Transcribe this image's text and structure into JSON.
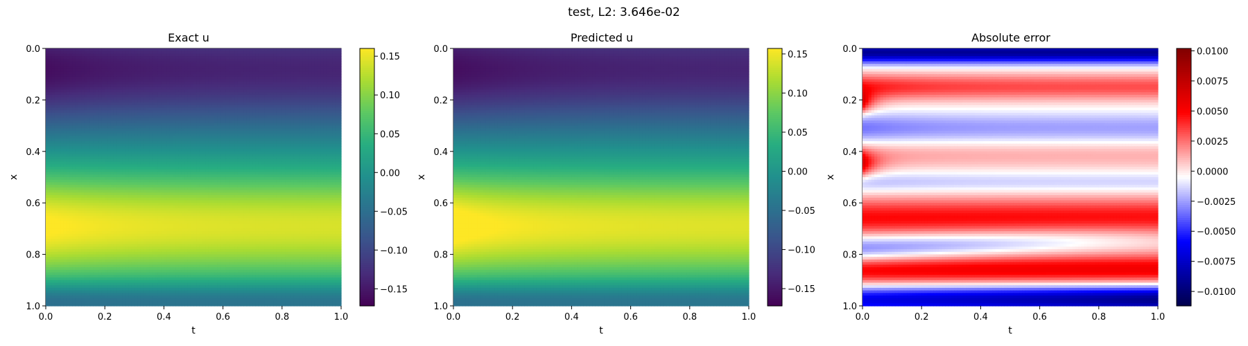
{
  "suptitle": "test, L2: 3.646e-02",
  "chart_data": [
    {
      "type": "heatmap",
      "title": "Exact u",
      "xlabel": "t",
      "ylabel": "x",
      "xlim": [
        0.0,
        1.0
      ],
      "ylim": [
        1.0,
        0.0
      ],
      "xticks": [
        "0.0",
        "0.2",
        "0.4",
        "0.6",
        "0.8",
        "1.0"
      ],
      "yticks": [
        "0.0",
        "0.2",
        "0.4",
        "0.6",
        "0.8",
        "1.0"
      ],
      "colormap": "viridis",
      "clim": [
        -0.172,
        0.16
      ],
      "colorbar_ticks": [
        "0.15",
        "0.10",
        "0.05",
        "0.00",
        "−0.05",
        "−0.10",
        "−0.15"
      ],
      "colorbar_tick_values": [
        0.15,
        0.1,
        0.05,
        0.0,
        -0.05,
        -0.1,
        -0.15
      ]
    },
    {
      "type": "heatmap",
      "title": "Predicted u",
      "xlabel": "t",
      "ylabel": "x",
      "xlim": [
        0.0,
        1.0
      ],
      "ylim": [
        1.0,
        0.0
      ],
      "xticks": [
        "0.0",
        "0.2",
        "0.4",
        "0.6",
        "0.8",
        "1.0"
      ],
      "yticks": [
        "0.0",
        "0.2",
        "0.4",
        "0.6",
        "0.8",
        "1.0"
      ],
      "colormap": "viridis",
      "clim": [
        -0.172,
        0.157
      ],
      "colorbar_ticks": [
        "0.15",
        "0.10",
        "0.05",
        "0.00",
        "−0.05",
        "−0.10",
        "−0.15"
      ],
      "colorbar_tick_values": [
        0.15,
        0.1,
        0.05,
        0.0,
        -0.05,
        -0.1,
        -0.15
      ]
    },
    {
      "type": "heatmap",
      "title": "Absolute error",
      "xlabel": "t",
      "ylabel": "x",
      "xlim": [
        0.0,
        1.0
      ],
      "ylim": [
        1.0,
        0.0
      ],
      "xticks": [
        "0.0",
        "0.2",
        "0.4",
        "0.6",
        "0.8",
        "1.0"
      ],
      "yticks": [
        "0.0",
        "0.2",
        "0.4",
        "0.6",
        "0.8",
        "1.0"
      ],
      "colormap": "seismic",
      "clim": [
        -0.0112,
        0.0102
      ],
      "colorbar_ticks": [
        "0.0100",
        "0.0075",
        "0.0050",
        "0.0025",
        "0.0000",
        "−0.0025",
        "−0.0050",
        "−0.0075",
        "−0.0100"
      ],
      "colorbar_tick_values": [
        0.01,
        0.0075,
        0.005,
        0.0025,
        0.0,
        -0.0025,
        -0.005,
        -0.0075,
        -0.01
      ]
    }
  ]
}
